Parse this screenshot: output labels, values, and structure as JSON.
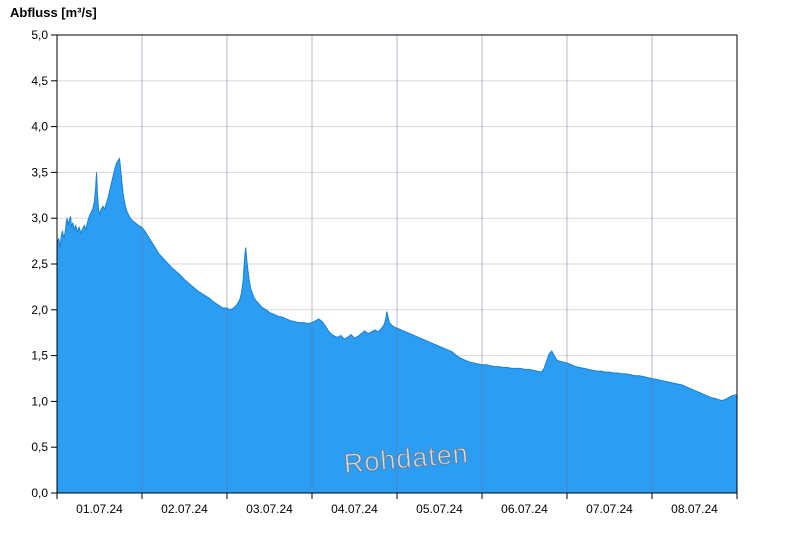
{
  "title": "Abfluss [m³/s]",
  "chart_data": {
    "type": "area",
    "title": "Abfluss [m³/s]",
    "watermark": "Rohdaten",
    "ylabel": "Abfluss [m³/s]",
    "ylim": [
      0.0,
      5.0
    ],
    "ytick_step": 0.5,
    "yticks": [
      0.0,
      0.5,
      1.0,
      1.5,
      2.0,
      2.5,
      3.0,
      3.5,
      4.0,
      4.5,
      5.0
    ],
    "ytick_labels": [
      "0,0",
      "0,5",
      "1,0",
      "1,5",
      "2,0",
      "2,5",
      "3,0",
      "3,5",
      "4,0",
      "4,5",
      "5,0"
    ],
    "xlim_days": [
      0,
      8
    ],
    "x_tick_labels": [
      "01.07.24",
      "02.07.24",
      "03.07.24",
      "04.07.24",
      "05.07.24",
      "06.07.24",
      "07.07.24",
      "08.07.24"
    ],
    "grid": true,
    "legend": "none",
    "colors": {
      "area_fill": "#2b9df3",
      "area_line": "#1a7fd1",
      "grid_h": "#d9d9d9",
      "grid_v": "#6c7a92",
      "grid_v_opacity": 0.5,
      "axis": "#000000",
      "tick_label": "#000000"
    },
    "points": [
      [
        0.0,
        2.72
      ],
      [
        0.02,
        2.78
      ],
      [
        0.035,
        2.68
      ],
      [
        0.05,
        2.8
      ],
      [
        0.065,
        2.86
      ],
      [
        0.08,
        2.78
      ],
      [
        0.095,
        2.84
      ],
      [
        0.11,
        2.96
      ],
      [
        0.12,
        3.0
      ],
      [
        0.13,
        2.92
      ],
      [
        0.145,
        2.98
      ],
      [
        0.16,
        3.02
      ],
      [
        0.17,
        2.9
      ],
      [
        0.185,
        2.95
      ],
      [
        0.2,
        2.88
      ],
      [
        0.22,
        2.92
      ],
      [
        0.24,
        2.85
      ],
      [
        0.26,
        2.9
      ],
      [
        0.28,
        2.84
      ],
      [
        0.3,
        2.88
      ],
      [
        0.32,
        2.92
      ],
      [
        0.34,
        2.88
      ],
      [
        0.36,
        2.96
      ],
      [
        0.38,
        3.02
      ],
      [
        0.4,
        3.06
      ],
      [
        0.42,
        3.1
      ],
      [
        0.44,
        3.18
      ],
      [
        0.455,
        3.34
      ],
      [
        0.465,
        3.5
      ],
      [
        0.475,
        3.28
      ],
      [
        0.49,
        3.08
      ],
      [
        0.505,
        3.05
      ],
      [
        0.52,
        3.1
      ],
      [
        0.54,
        3.13
      ],
      [
        0.56,
        3.1
      ],
      [
        0.58,
        3.16
      ],
      [
        0.6,
        3.22
      ],
      [
        0.62,
        3.3
      ],
      [
        0.64,
        3.38
      ],
      [
        0.66,
        3.46
      ],
      [
        0.68,
        3.54
      ],
      [
        0.7,
        3.6
      ],
      [
        0.72,
        3.63
      ],
      [
        0.735,
        3.65
      ],
      [
        0.75,
        3.52
      ],
      [
        0.765,
        3.38
      ],
      [
        0.78,
        3.25
      ],
      [
        0.8,
        3.15
      ],
      [
        0.82,
        3.08
      ],
      [
        0.85,
        3.02
      ],
      [
        0.88,
        2.98
      ],
      [
        0.92,
        2.95
      ],
      [
        0.96,
        2.92
      ],
      [
        1.0,
        2.9
      ],
      [
        1.04,
        2.85
      ],
      [
        1.08,
        2.79
      ],
      [
        1.12,
        2.73
      ],
      [
        1.16,
        2.67
      ],
      [
        1.2,
        2.61
      ],
      [
        1.25,
        2.56
      ],
      [
        1.3,
        2.51
      ],
      [
        1.35,
        2.46
      ],
      [
        1.4,
        2.42
      ],
      [
        1.45,
        2.38
      ],
      [
        1.5,
        2.33
      ],
      [
        1.55,
        2.29
      ],
      [
        1.6,
        2.25
      ],
      [
        1.65,
        2.21
      ],
      [
        1.7,
        2.18
      ],
      [
        1.75,
        2.15
      ],
      [
        1.8,
        2.12
      ],
      [
        1.85,
        2.08
      ],
      [
        1.9,
        2.05
      ],
      [
        1.95,
        2.02
      ],
      [
        2.0,
        2.02
      ],
      [
        2.04,
        2.0
      ],
      [
        2.08,
        2.02
      ],
      [
        2.12,
        2.06
      ],
      [
        2.15,
        2.11
      ],
      [
        2.17,
        2.18
      ],
      [
        2.19,
        2.32
      ],
      [
        2.2,
        2.46
      ],
      [
        2.21,
        2.6
      ],
      [
        2.22,
        2.68
      ],
      [
        2.23,
        2.57
      ],
      [
        2.245,
        2.44
      ],
      [
        2.26,
        2.33
      ],
      [
        2.28,
        2.23
      ],
      [
        2.31,
        2.15
      ],
      [
        2.34,
        2.1
      ],
      [
        2.38,
        2.06
      ],
      [
        2.42,
        2.02
      ],
      [
        2.46,
        2.0
      ],
      [
        2.5,
        1.97
      ],
      [
        2.55,
        1.95
      ],
      [
        2.6,
        1.93
      ],
      [
        2.65,
        1.92
      ],
      [
        2.7,
        1.9
      ],
      [
        2.75,
        1.88
      ],
      [
        2.8,
        1.87
      ],
      [
        2.85,
        1.86
      ],
      [
        2.9,
        1.86
      ],
      [
        2.95,
        1.85
      ],
      [
        3.0,
        1.86
      ],
      [
        3.04,
        1.88
      ],
      [
        3.08,
        1.9
      ],
      [
        3.12,
        1.87
      ],
      [
        3.16,
        1.82
      ],
      [
        3.2,
        1.76
      ],
      [
        3.25,
        1.72
      ],
      [
        3.3,
        1.7
      ],
      [
        3.34,
        1.72
      ],
      [
        3.38,
        1.68
      ],
      [
        3.42,
        1.7
      ],
      [
        3.46,
        1.73
      ],
      [
        3.5,
        1.69
      ],
      [
        3.54,
        1.71
      ],
      [
        3.58,
        1.74
      ],
      [
        3.62,
        1.77
      ],
      [
        3.66,
        1.74
      ],
      [
        3.7,
        1.76
      ],
      [
        3.74,
        1.78
      ],
      [
        3.78,
        1.76
      ],
      [
        3.82,
        1.8
      ],
      [
        3.85,
        1.84
      ],
      [
        3.87,
        1.91
      ],
      [
        3.88,
        1.98
      ],
      [
        3.895,
        1.92
      ],
      [
        3.91,
        1.86
      ],
      [
        3.94,
        1.83
      ],
      [
        3.97,
        1.81
      ],
      [
        4.0,
        1.8
      ],
      [
        4.05,
        1.78
      ],
      [
        4.1,
        1.76
      ],
      [
        4.15,
        1.74
      ],
      [
        4.2,
        1.72
      ],
      [
        4.25,
        1.7
      ],
      [
        4.3,
        1.68
      ],
      [
        4.35,
        1.66
      ],
      [
        4.4,
        1.64
      ],
      [
        4.45,
        1.62
      ],
      [
        4.5,
        1.6
      ],
      [
        4.55,
        1.58
      ],
      [
        4.6,
        1.56
      ],
      [
        4.65,
        1.54
      ],
      [
        4.7,
        1.5
      ],
      [
        4.75,
        1.47
      ],
      [
        4.8,
        1.45
      ],
      [
        4.85,
        1.43
      ],
      [
        4.9,
        1.42
      ],
      [
        4.95,
        1.41
      ],
      [
        5.0,
        1.4
      ],
      [
        5.05,
        1.4
      ],
      [
        5.1,
        1.39
      ],
      [
        5.15,
        1.38
      ],
      [
        5.2,
        1.38
      ],
      [
        5.25,
        1.37
      ],
      [
        5.3,
        1.37
      ],
      [
        5.35,
        1.36
      ],
      [
        5.4,
        1.36
      ],
      [
        5.45,
        1.36
      ],
      [
        5.5,
        1.35
      ],
      [
        5.55,
        1.35
      ],
      [
        5.6,
        1.34
      ],
      [
        5.65,
        1.33
      ],
      [
        5.7,
        1.32
      ],
      [
        5.73,
        1.36
      ],
      [
        5.76,
        1.44
      ],
      [
        5.79,
        1.52
      ],
      [
        5.82,
        1.55
      ],
      [
        5.85,
        1.5
      ],
      [
        5.88,
        1.45
      ],
      [
        5.91,
        1.44
      ],
      [
        5.95,
        1.43
      ],
      [
        6.0,
        1.42
      ],
      [
        6.05,
        1.4
      ],
      [
        6.1,
        1.38
      ],
      [
        6.15,
        1.37
      ],
      [
        6.2,
        1.36
      ],
      [
        6.25,
        1.35
      ],
      [
        6.3,
        1.34
      ],
      [
        6.35,
        1.33
      ],
      [
        6.4,
        1.33
      ],
      [
        6.45,
        1.32
      ],
      [
        6.5,
        1.32
      ],
      [
        6.55,
        1.31
      ],
      [
        6.6,
        1.31
      ],
      [
        6.65,
        1.3
      ],
      [
        6.7,
        1.3
      ],
      [
        6.75,
        1.29
      ],
      [
        6.8,
        1.28
      ],
      [
        6.85,
        1.28
      ],
      [
        6.9,
        1.27
      ],
      [
        6.95,
        1.26
      ],
      [
        7.0,
        1.25
      ],
      [
        7.05,
        1.24
      ],
      [
        7.1,
        1.23
      ],
      [
        7.15,
        1.22
      ],
      [
        7.2,
        1.21
      ],
      [
        7.25,
        1.2
      ],
      [
        7.3,
        1.19
      ],
      [
        7.35,
        1.18
      ],
      [
        7.4,
        1.16
      ],
      [
        7.45,
        1.14
      ],
      [
        7.5,
        1.12
      ],
      [
        7.55,
        1.1
      ],
      [
        7.6,
        1.08
      ],
      [
        7.65,
        1.06
      ],
      [
        7.7,
        1.04
      ],
      [
        7.75,
        1.03
      ],
      [
        7.78,
        1.02
      ],
      [
        7.82,
        1.01
      ],
      [
        7.86,
        1.02
      ],
      [
        7.9,
        1.04
      ],
      [
        7.94,
        1.06
      ],
      [
        7.98,
        1.07
      ],
      [
        8.0,
        1.07
      ]
    ]
  }
}
